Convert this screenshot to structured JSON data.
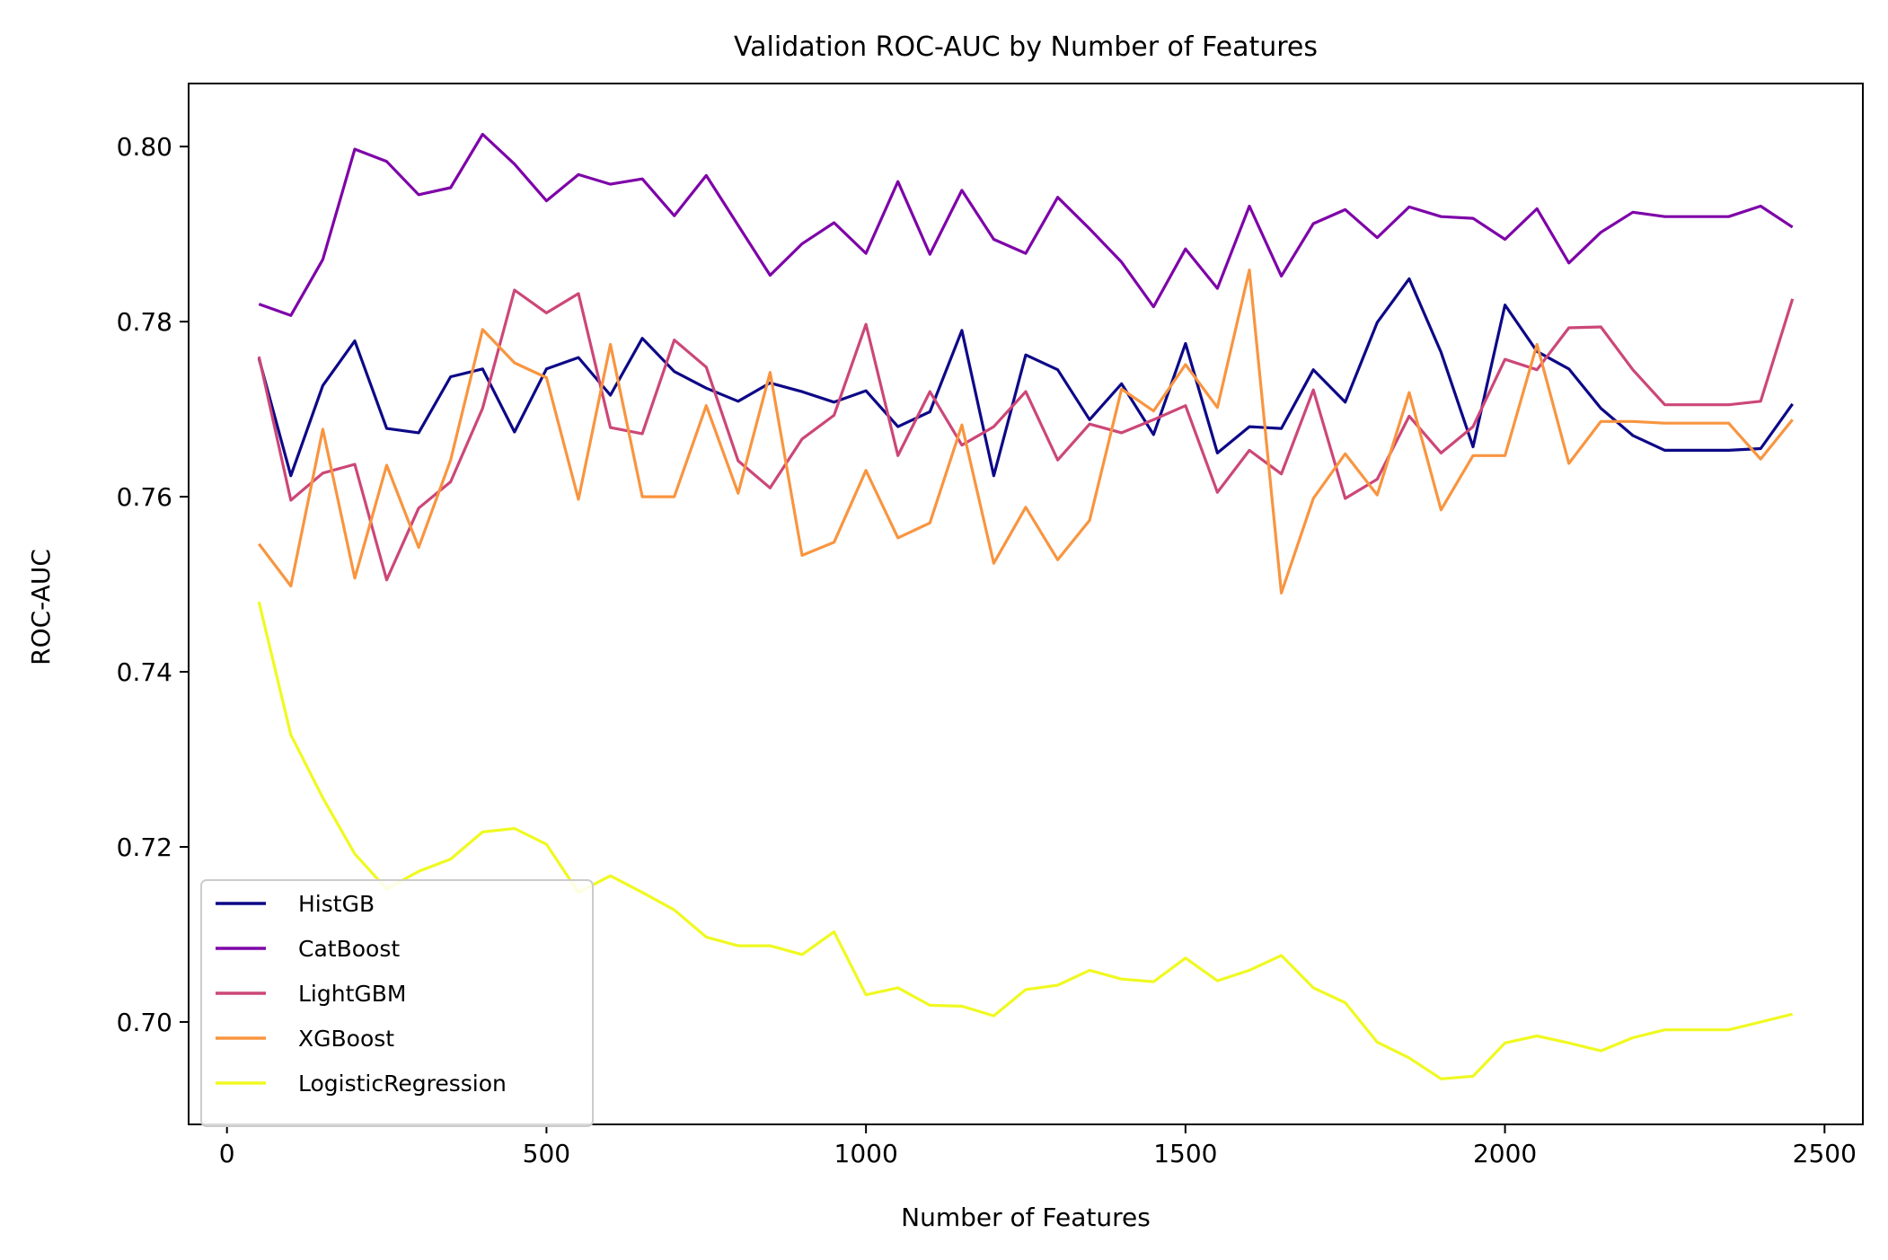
{
  "chart_data": {
    "type": "line",
    "title": "Validation ROC-AUC by Number of Features",
    "xlabel": "Number of Features",
    "ylabel": "ROC-AUC",
    "xlim": [
      -60,
      2560
    ],
    "ylim": [
      0.6883,
      0.8072
    ],
    "xticks": [
      0,
      500,
      1000,
      1500,
      2000,
      2500
    ],
    "xtick_labels": [
      "0",
      "500",
      "1000",
      "1500",
      "2000",
      "2500"
    ],
    "yticks": [
      0.7,
      0.72,
      0.74,
      0.76,
      0.78,
      0.8
    ],
    "ytick_labels": [
      "0.70",
      "0.72",
      "0.74",
      "0.76",
      "0.78",
      "0.80"
    ],
    "grid": false,
    "legend_position": "lower-left",
    "x": [
      50,
      100,
      150,
      200,
      250,
      300,
      350,
      400,
      450,
      500,
      550,
      600,
      650,
      700,
      750,
      800,
      850,
      900,
      950,
      1000,
      1050,
      1100,
      1150,
      1200,
      1250,
      1300,
      1350,
      1400,
      1450,
      1500,
      1550,
      1600,
      1650,
      1700,
      1750,
      1800,
      1850,
      1900,
      1950,
      2000,
      2050,
      2100,
      2150,
      2200,
      2250,
      2300,
      2350,
      2400,
      2450
    ],
    "series": [
      {
        "name": "HistGB",
        "color": "#0d0887",
        "values": [
          0.7758,
          0.7624,
          0.7727,
          0.7778,
          0.7678,
          0.7673,
          0.7737,
          0.7746,
          0.7674,
          0.7746,
          0.7759,
          0.7716,
          0.7781,
          0.7743,
          0.7724,
          0.7709,
          0.773,
          0.772,
          0.7708,
          0.7721,
          0.768,
          0.7697,
          0.779,
          0.7624,
          0.7762,
          0.7745,
          0.7688,
          0.7729,
          0.7671,
          0.7775,
          0.765,
          0.768,
          0.7678,
          0.7745,
          0.7708,
          0.7799,
          0.7849,
          0.7765,
          0.7657,
          0.7819,
          0.7766,
          0.7746,
          0.7701,
          0.767,
          0.7653,
          0.7653,
          0.7653,
          0.7655,
          0.7706
        ]
      },
      {
        "name": "CatBoost",
        "color": "#7e03a8",
        "values": [
          0.782,
          0.7807,
          0.7871,
          0.7997,
          0.7983,
          0.7945,
          0.7953,
          0.8014,
          0.798,
          0.7938,
          0.7968,
          0.7957,
          0.7963,
          0.7921,
          0.7967,
          0.791,
          0.7853,
          0.7889,
          0.7913,
          0.7878,
          0.796,
          0.7877,
          0.795,
          0.7894,
          0.7878,
          0.7942,
          0.7906,
          0.7868,
          0.7817,
          0.7883,
          0.7838,
          0.7932,
          0.7852,
          0.7912,
          0.7928,
          0.7896,
          0.7931,
          0.792,
          0.7918,
          0.7894,
          0.7929,
          0.7867,
          0.7902,
          0.7925,
          0.792,
          0.792,
          0.792,
          0.7932,
          0.7908
        ]
      },
      {
        "name": "LightGBM",
        "color": "#cc4778",
        "values": [
          0.776,
          0.7596,
          0.7627,
          0.7637,
          0.7505,
          0.7587,
          0.7617,
          0.7701,
          0.7836,
          0.781,
          0.7832,
          0.7679,
          0.7672,
          0.7779,
          0.7748,
          0.7641,
          0.761,
          0.7666,
          0.7693,
          0.7797,
          0.7647,
          0.772,
          0.7659,
          0.768,
          0.772,
          0.7642,
          0.7683,
          0.7673,
          0.7688,
          0.7704,
          0.7605,
          0.7653,
          0.7626,
          0.7722,
          0.7598,
          0.762,
          0.7692,
          0.765,
          0.768,
          0.7757,
          0.7745,
          0.7793,
          0.7794,
          0.7745,
          0.7705,
          0.7705,
          0.7705,
          0.7709,
          0.7826
        ]
      },
      {
        "name": "XGBoost",
        "color": "#f89540",
        "values": [
          0.7546,
          0.7498,
          0.7677,
          0.7507,
          0.7636,
          0.7542,
          0.7642,
          0.7791,
          0.7753,
          0.7736,
          0.7597,
          0.7774,
          0.76,
          0.76,
          0.7704,
          0.7604,
          0.7742,
          0.7533,
          0.7548,
          0.763,
          0.7553,
          0.757,
          0.7682,
          0.7524,
          0.7588,
          0.7528,
          0.7573,
          0.7723,
          0.7698,
          0.7751,
          0.7702,
          0.7859,
          0.749,
          0.7598,
          0.7649,
          0.7602,
          0.7719,
          0.7585,
          0.7647,
          0.7647,
          0.7774,
          0.7638,
          0.7686,
          0.7686,
          0.7684,
          0.7684,
          0.7684,
          0.7643,
          0.7688
        ]
      },
      {
        "name": "LogisticRegression",
        "color": "#f0f921",
        "values": [
          0.748,
          0.7328,
          0.7256,
          0.7192,
          0.7152,
          0.7172,
          0.7186,
          0.7217,
          0.7221,
          0.7203,
          0.7148,
          0.7167,
          0.7148,
          0.7128,
          0.7097,
          0.7087,
          0.7087,
          0.7077,
          0.7103,
          0.7031,
          0.7039,
          0.7019,
          0.7018,
          0.7007,
          0.7037,
          0.7042,
          0.7059,
          0.7049,
          0.7046,
          0.7073,
          0.7047,
          0.7059,
          0.7076,
          0.7039,
          0.7022,
          0.6977,
          0.6959,
          0.6935,
          0.6938,
          0.6976,
          0.6984,
          0.6976,
          0.6967,
          0.6982,
          0.6991,
          0.6991,
          0.6991,
          0.7,
          0.7009
        ]
      }
    ]
  }
}
